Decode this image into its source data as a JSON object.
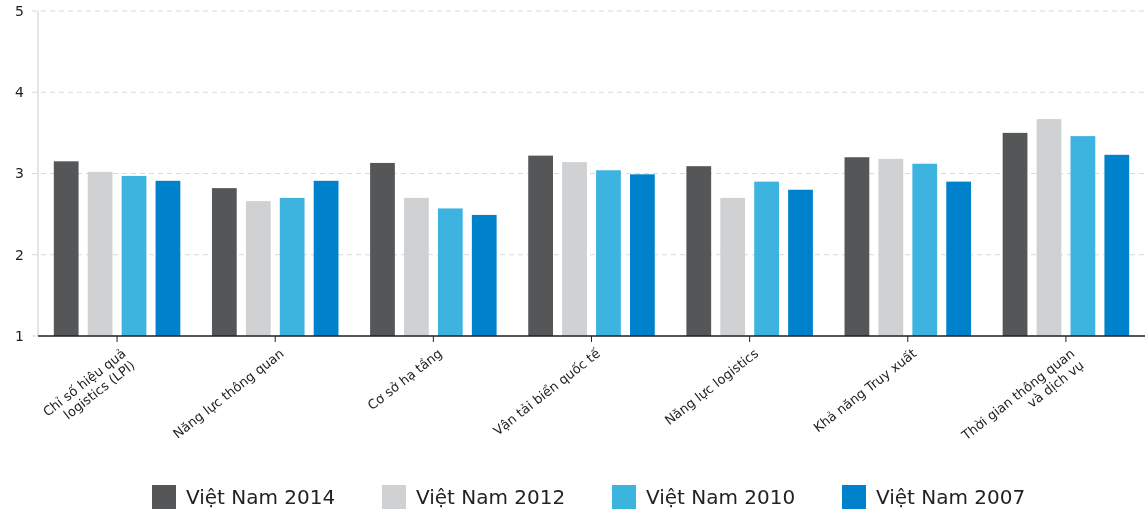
{
  "chart_data": {
    "type": "bar",
    "categories": [
      "Chỉ số hiệu quả\nlogistics (LPI)",
      "Năng lực thông quan",
      "Cơ sở hạ tầng",
      "Vận tải biển quốc tế",
      "Năng lực logistics",
      "Khả năng Truy xuất",
      "Thời gian thông quan\nvà dịch vụ"
    ],
    "series": [
      {
        "name": "Việt Nam 2014",
        "color": "#555658",
        "values": [
          3.15,
          2.82,
          3.13,
          3.22,
          3.09,
          3.2,
          3.5
        ]
      },
      {
        "name": "Việt Nam 2012",
        "color": "#d0d1d3",
        "values": [
          3.02,
          2.66,
          2.7,
          3.14,
          2.7,
          3.18,
          3.67
        ]
      },
      {
        "name": "Việt Nam 2010",
        "color": "#3db3e0",
        "values": [
          2.97,
          2.7,
          2.57,
          3.04,
          2.9,
          3.12,
          3.46
        ]
      },
      {
        "name": "Việt Nam 2007",
        "color": "#0081cb",
        "values": [
          2.91,
          2.91,
          2.49,
          2.99,
          2.8,
          2.9,
          3.23
        ]
      }
    ],
    "ylim": [
      1,
      5
    ],
    "yticks": [
      1,
      2,
      3,
      4,
      5
    ],
    "grid": "y",
    "legend": "bottom"
  }
}
